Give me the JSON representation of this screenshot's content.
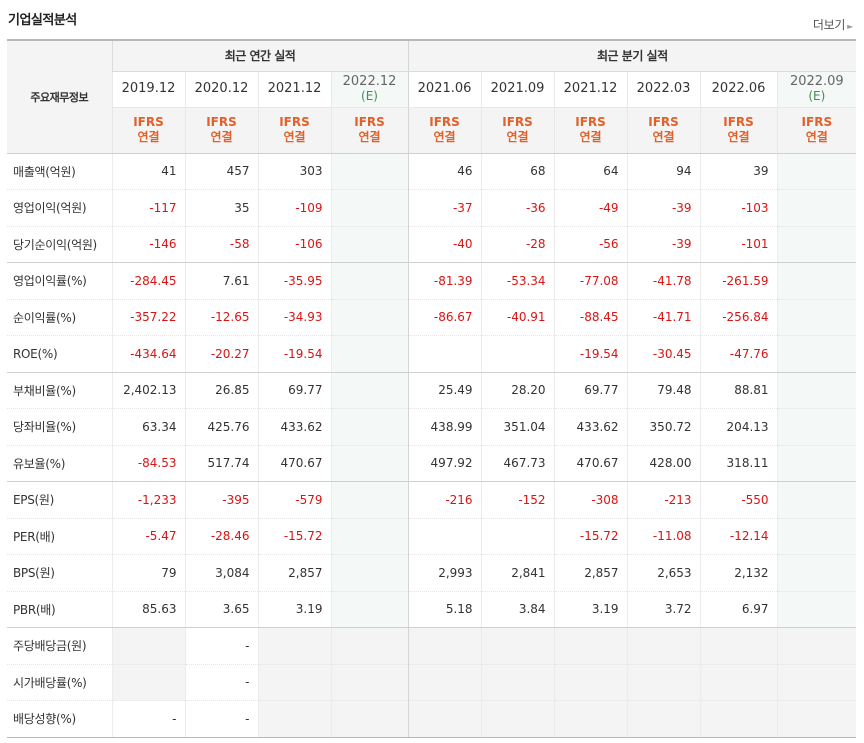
{
  "title": "기업실적분석",
  "more_label": "더보기",
  "group_header": {
    "row_label": "주요재무정보",
    "annual": "최근 연간 실적",
    "quarterly": "최근 분기 실적"
  },
  "columns": [
    {
      "period": "2019.12",
      "est": "",
      "std1": "IFRS",
      "std2": "연결"
    },
    {
      "period": "2020.12",
      "est": "",
      "std1": "IFRS",
      "std2": "연결"
    },
    {
      "period": "2021.12",
      "est": "",
      "std1": "IFRS",
      "std2": "연결"
    },
    {
      "period": "2022.12",
      "est": "(E)",
      "std1": "IFRS",
      "std2": "연결"
    },
    {
      "period": "2021.06",
      "est": "",
      "std1": "IFRS",
      "std2": "연결"
    },
    {
      "period": "2021.09",
      "est": "",
      "std1": "IFRS",
      "std2": "연결"
    },
    {
      "period": "2021.12",
      "est": "",
      "std1": "IFRS",
      "std2": "연결"
    },
    {
      "period": "2022.03",
      "est": "",
      "std1": "IFRS",
      "std2": "연결"
    },
    {
      "period": "2022.06",
      "est": "",
      "std1": "IFRS",
      "std2": "연결"
    },
    {
      "period": "2022.09",
      "est": "(E)",
      "std1": "IFRS",
      "std2": "연결"
    }
  ],
  "rows": [
    {
      "label": "매출액(억원)",
      "values": [
        "41",
        "457",
        "303",
        "",
        "46",
        "68",
        "64",
        "94",
        "39",
        ""
      ]
    },
    {
      "label": "영업이익(억원)",
      "values": [
        "-117",
        "35",
        "-109",
        "",
        "-37",
        "-36",
        "-49",
        "-39",
        "-103",
        ""
      ]
    },
    {
      "label": "당기순이익(억원)",
      "values": [
        "-146",
        "-58",
        "-106",
        "",
        "-40",
        "-28",
        "-56",
        "-39",
        "-101",
        ""
      ]
    },
    {
      "label": "영업이익률(%)",
      "values": [
        "-284.45",
        "7.61",
        "-35.95",
        "",
        "-81.39",
        "-53.34",
        "-77.08",
        "-41.78",
        "-261.59",
        ""
      ]
    },
    {
      "label": "순이익률(%)",
      "values": [
        "-357.22",
        "-12.65",
        "-34.93",
        "",
        "-86.67",
        "-40.91",
        "-88.45",
        "-41.71",
        "-256.84",
        ""
      ]
    },
    {
      "label": "ROE(%)",
      "values": [
        "-434.64",
        "-20.27",
        "-19.54",
        "",
        "",
        "",
        "-19.54",
        "-30.45",
        "-47.76",
        ""
      ]
    },
    {
      "label": "부채비율(%)",
      "values": [
        "2,402.13",
        "26.85",
        "69.77",
        "",
        "25.49",
        "28.20",
        "69.77",
        "79.48",
        "88.81",
        ""
      ]
    },
    {
      "label": "당좌비율(%)",
      "values": [
        "63.34",
        "425.76",
        "433.62",
        "",
        "438.99",
        "351.04",
        "433.62",
        "350.72",
        "204.13",
        ""
      ]
    },
    {
      "label": "유보율(%)",
      "values": [
        "-84.53",
        "517.74",
        "470.67",
        "",
        "497.92",
        "467.73",
        "470.67",
        "428.00",
        "318.11",
        ""
      ]
    },
    {
      "label": "EPS(원)",
      "values": [
        "-1,233",
        "-395",
        "-579",
        "",
        "-216",
        "-152",
        "-308",
        "-213",
        "-550",
        ""
      ]
    },
    {
      "label": "PER(배)",
      "values": [
        "-5.47",
        "-28.46",
        "-15.72",
        "",
        "",
        "",
        "-15.72",
        "-11.08",
        "-12.14",
        ""
      ]
    },
    {
      "label": "BPS(원)",
      "values": [
        "79",
        "3,084",
        "2,857",
        "",
        "2,993",
        "2,841",
        "2,857",
        "2,653",
        "2,132",
        ""
      ]
    },
    {
      "label": "PBR(배)",
      "values": [
        "85.63",
        "3.65",
        "3.19",
        "",
        "5.18",
        "3.84",
        "3.19",
        "3.72",
        "6.97",
        ""
      ]
    },
    {
      "label": "주당배당금(원)",
      "values": [
        "",
        "-",
        "",
        "",
        "",
        "",
        "",
        "",
        "",
        ""
      ]
    },
    {
      "label": "시가배당률(%)",
      "values": [
        "",
        "-",
        "",
        "",
        "",
        "",
        "",
        "",
        "",
        ""
      ]
    },
    {
      "label": "배당성향(%)",
      "values": [
        "-",
        "-",
        "",
        "",
        "",
        "",
        "",
        "",
        "",
        ""
      ]
    }
  ],
  "colors": {
    "negative": "#d81414",
    "standard": "#e0612a",
    "estimate": "#4a8a55"
  }
}
